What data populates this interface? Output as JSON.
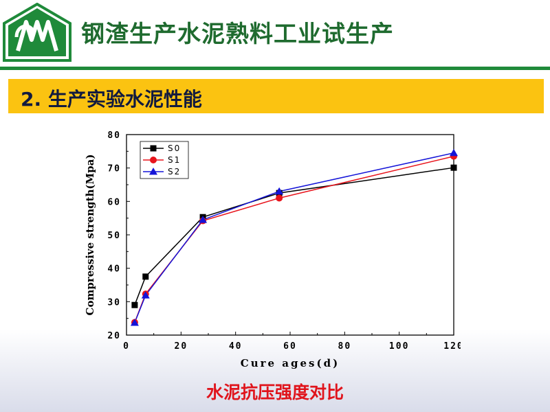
{
  "header": {
    "title": "钢渣生产水泥熟料工业试生产",
    "logo_color": "#1f8a3a"
  },
  "section": {
    "label": "2. 生产实验水泥性能",
    "bar_color": "#fbc311"
  },
  "caption": "水泥抗压强度对比",
  "chart_data": {
    "type": "line",
    "xlabel": "Cure ages(d)",
    "ylabel": "Compressive strength(Mpa)",
    "xlim": [
      0,
      120
    ],
    "ylim": [
      20,
      80
    ],
    "x_ticks": [
      0,
      20,
      40,
      60,
      80,
      100,
      120
    ],
    "y_ticks": [
      20,
      30,
      40,
      50,
      60,
      70,
      80
    ],
    "legend_position": "top-left",
    "grid": false,
    "series": [
      {
        "name": "S0",
        "color": "#000000",
        "marker": "square",
        "x": [
          3,
          7,
          28,
          56,
          120
        ],
        "y": [
          29.0,
          37.5,
          55.3,
          62.5,
          70.1
        ]
      },
      {
        "name": "S1",
        "color": "#e8141c",
        "marker": "circle",
        "x": [
          3,
          7,
          28,
          56,
          120
        ],
        "y": [
          23.8,
          32.3,
          54.2,
          61.0,
          73.5
        ]
      },
      {
        "name": "S2",
        "color": "#1414d8",
        "marker": "triangle",
        "x": [
          3,
          7,
          28,
          56,
          120
        ],
        "y": [
          23.7,
          31.9,
          54.5,
          63.0,
          74.5
        ]
      }
    ]
  }
}
